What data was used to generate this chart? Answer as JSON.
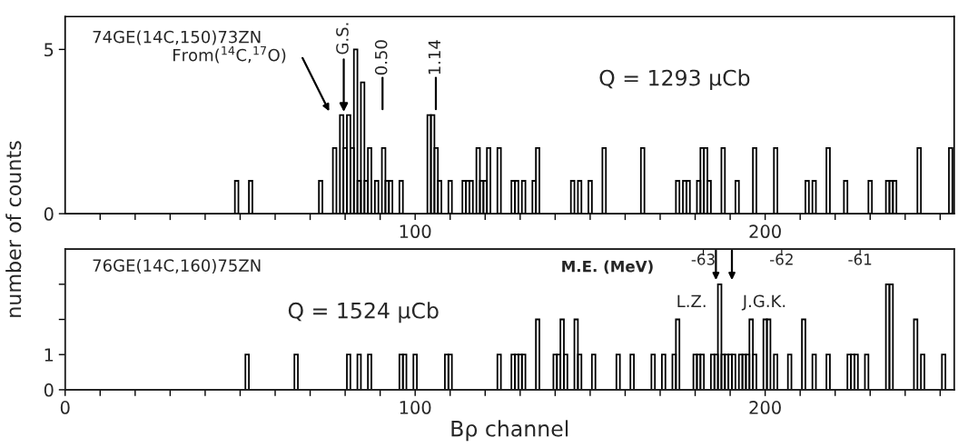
{
  "chart_data": [
    {
      "type": "bar",
      "title": "74GE(14C,150)73ZN",
      "ylabel": "number of counts",
      "x": [
        49,
        53,
        73,
        77,
        79,
        80,
        81,
        82,
        83,
        84,
        85,
        86,
        87,
        89,
        91,
        92,
        93,
        96,
        104,
        105,
        106,
        107,
        110,
        114,
        115,
        116,
        118,
        119,
        120,
        121,
        124,
        128,
        129,
        131,
        134,
        135,
        145,
        147,
        150,
        154,
        165,
        175,
        177,
        178,
        181,
        182,
        183,
        184,
        188,
        192,
        197,
        203,
        212,
        214,
        218,
        223,
        230,
        235,
        236,
        237,
        244,
        253
      ],
      "values": [
        1,
        1,
        1,
        2,
        3,
        2,
        3,
        2,
        5,
        1,
        4,
        1,
        2,
        1,
        2,
        1,
        1,
        1,
        3,
        3,
        2,
        1,
        1,
        1,
        1,
        1,
        2,
        1,
        1,
        2,
        2,
        1,
        1,
        1,
        1,
        2,
        1,
        1,
        1,
        2,
        2,
        1,
        1,
        1,
        1,
        2,
        2,
        1,
        2,
        1,
        2,
        2,
        1,
        1,
        2,
        1,
        1,
        1,
        1,
        1,
        2,
        2
      ],
      "color": "#000000",
      "xlim": [
        0,
        254
      ],
      "ylim": [
        0,
        6
      ],
      "yticks": [
        0,
        5
      ],
      "xticks": [
        {
          "value": 10,
          "label": null
        },
        {
          "value": 20,
          "label": null
        },
        {
          "value": 30,
          "label": null
        },
        {
          "value": 40,
          "label": null
        },
        {
          "value": 50,
          "label": null
        },
        {
          "value": 60,
          "label": null
        },
        {
          "value": 70,
          "label": null
        },
        {
          "value": 80,
          "label": null
        },
        {
          "value": 90,
          "label": null
        },
        100,
        {
          "value": 110,
          "label": null
        },
        {
          "value": 120,
          "label": null
        },
        {
          "value": 130,
          "label": null
        },
        {
          "value": 140,
          "label": null
        },
        {
          "value": 150,
          "label": null
        },
        {
          "value": 160,
          "label": null
        },
        {
          "value": 170,
          "label": null
        },
        {
          "value": 180,
          "label": null
        },
        {
          "value": 190,
          "label": null
        },
        200,
        {
          "value": 210,
          "label": null
        },
        {
          "value": 220,
          "label": null
        },
        {
          "value": 230,
          "label": null
        },
        {
          "value": 240,
          "label": null
        },
        {
          "value": 250,
          "label": null
        }
      ],
      "annotations": [
        "Q = 1293 μCb",
        "From($^{14}$C,$^{17}$O)",
        {
          "text": "G.S.",
          "x": 79.6,
          "y": 3.1
        },
        "0.50",
        "1.14"
      ],
      "grid": false,
      "legend": false
    },
    {
      "type": "bar",
      "title": "76GE(14C,160)75ZN",
      "xlabel": "Bρ channel",
      "x": [
        52,
        66,
        81,
        84,
        87,
        96,
        97,
        100,
        109,
        110,
        124,
        128,
        129,
        130,
        131,
        135,
        140,
        141,
        142,
        143,
        146,
        147,
        151,
        158,
        162,
        168,
        171,
        174,
        175,
        180,
        181,
        182,
        185,
        186,
        187,
        188,
        189,
        190,
        191,
        193,
        194,
        195,
        196,
        197,
        200,
        201,
        203,
        207,
        211,
        214,
        218,
        224,
        225,
        226,
        229,
        235,
        236,
        243,
        245,
        251
      ],
      "values": [
        1,
        1,
        1,
        1,
        1,
        1,
        1,
        1,
        1,
        1,
        1,
        1,
        1,
        1,
        1,
        2,
        1,
        1,
        2,
        1,
        2,
        1,
        1,
        1,
        1,
        1,
        1,
        1,
        2,
        1,
        1,
        1,
        1,
        1,
        3,
        1,
        1,
        1,
        1,
        1,
        1,
        1,
        2,
        1,
        2,
        2,
        1,
        1,
        2,
        1,
        1,
        1,
        1,
        1,
        1,
        3,
        3,
        2,
        1,
        1
      ],
      "color": "#000000",
      "xlim": [
        0,
        254
      ],
      "ylim": [
        0,
        4
      ],
      "yticks": [
        0,
        1,
        {
          "value": 2,
          "label": null
        },
        {
          "value": 3,
          "label": null
        }
      ],
      "xticks": [
        0,
        {
          "value": 10,
          "label": null
        },
        {
          "value": 20,
          "label": null
        },
        {
          "value": 30,
          "label": null
        },
        {
          "value": 40,
          "label": null
        },
        {
          "value": 50,
          "label": null
        },
        {
          "value": 60,
          "label": null
        },
        {
          "value": 70,
          "label": null
        },
        {
          "value": 80,
          "label": null
        },
        {
          "value": 90,
          "label": null
        },
        100,
        {
          "value": 110,
          "label": null
        },
        {
          "value": 120,
          "label": null
        },
        {
          "value": 130,
          "label": null
        },
        {
          "value": 140,
          "label": null
        },
        {
          "value": 150,
          "label": null
        },
        {
          "value": 160,
          "label": null
        },
        {
          "value": 170,
          "label": null
        },
        {
          "value": 180,
          "label": null
        },
        {
          "value": 190,
          "label": null
        },
        200,
        {
          "value": 210,
          "label": null
        },
        {
          "value": 220,
          "label": null
        },
        {
          "value": 230,
          "label": null
        },
        {
          "value": 240,
          "label": null
        },
        {
          "value": 250,
          "label": null
        }
      ],
      "x2label": "M.E. (MeV)",
      "x2lim": [
        -71.14,
        -59.8
      ],
      "x2ticks": [
        -63,
        -62,
        -61
      ],
      "annotations": [
        "Q = 1524 μCb",
        "L.Z.",
        "J.G.K."
      ],
      "grid": false,
      "legend": false
    }
  ]
}
